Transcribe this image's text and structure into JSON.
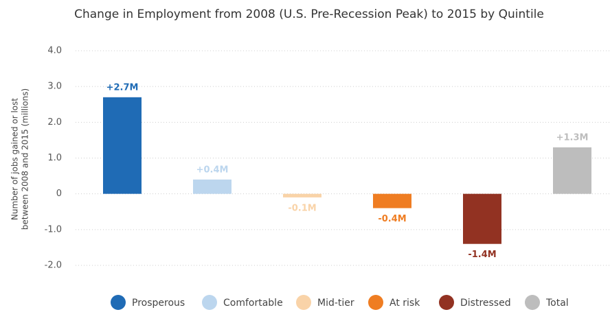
{
  "chart_data": {
    "type": "bar",
    "title": "Change in Employment from 2008 (U.S. Pre-Recession Peak) to 2015 by Quintile",
    "ylabel": [
      "Number of jobs gained or lost",
      "between 2008 and 2015 (millions)"
    ],
    "categories": [
      "Prosperous",
      "Comfortable",
      "Mid-tier",
      "At risk",
      "Distressed",
      "Total"
    ],
    "values": [
      2.7,
      0.4,
      -0.1,
      -0.4,
      -1.4,
      1.3
    ],
    "value_labels": [
      "+2.7M",
      "+0.4M",
      "-0.1M",
      "-0.4M",
      "-1.4M",
      "+1.3M"
    ],
    "colors": [
      "#1f6bb5",
      "#bcd6ee",
      "#f9d3a8",
      "#ef7d22",
      "#923222",
      "#bdbdbd"
    ],
    "ylim": [
      -2,
      4
    ],
    "yticks": [
      {
        "value": -2,
        "label": "-2.0"
      },
      {
        "value": -1,
        "label": "-1.0"
      },
      0,
      {
        "value": 1,
        "label": "1.0"
      },
      {
        "value": 2,
        "label": "2.0"
      },
      {
        "value": 3,
        "label": "3.0"
      },
      {
        "value": 4,
        "label": "4.0"
      }
    ],
    "grid": true,
    "legend": "bottom"
  }
}
